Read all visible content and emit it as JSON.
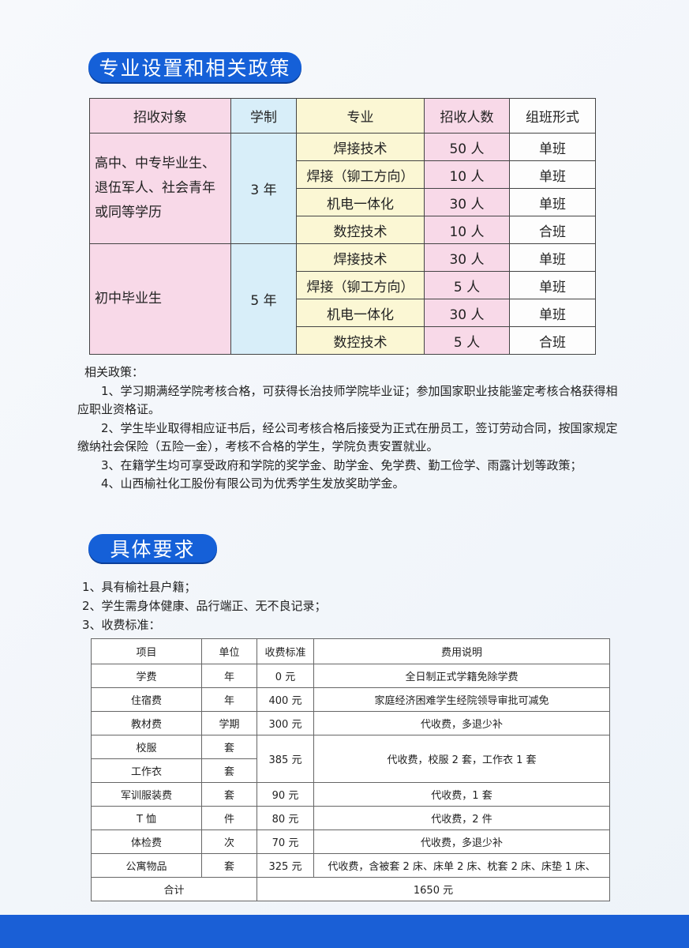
{
  "section1": {
    "title": "专业设置和相关政策"
  },
  "table1": {
    "header": [
      "招收对象",
      "学制",
      "专业",
      "招收人数",
      "组班形式"
    ],
    "groups": [
      {
        "target": "高中、中专毕业生、退伍军人、社会青年或同等学历",
        "duration": "3 年",
        "rows": [
          [
            "焊接技术",
            "50 人",
            "单班"
          ],
          [
            "焊接（铆工方向）",
            "10 人",
            "单班"
          ],
          [
            "机电一体化",
            "30 人",
            "单班"
          ],
          [
            "数控技术",
            "10 人",
            "合班"
          ]
        ]
      },
      {
        "target": "初中毕业生",
        "duration": "5 年",
        "rows": [
          [
            "焊接技术",
            "30 人",
            "单班"
          ],
          [
            "焊接（铆工方向）",
            "5 人",
            "单班"
          ],
          [
            "机电一体化",
            "30 人",
            "单班"
          ],
          [
            "数控技术",
            "5 人",
            "合班"
          ]
        ]
      }
    ]
  },
  "policy": {
    "title": "相关政策：",
    "items": [
      "1、学习期满经学院考核合格，可获得长治技师学院毕业证；参加国家职业技能鉴定考核合格获得相应职业资格证。",
      "2、学生毕业取得相应证书后，经公司考核合格后接受为正式在册员工，签订劳动合同，按国家规定缴纳社会保险（五险一金），考核不合格的学生，学院负责安置就业。",
      "3、在籍学生均可享受政府和学院的奖学金、助学金、免学费、勤工俭学、雨露计划等政策；",
      "4、山西榆社化工股份有限公司为优秀学生发放奖助学金。"
    ]
  },
  "section2": {
    "title": "具体要求"
  },
  "requirements": [
    "1、具有榆社县户籍；",
    "2、学生需身体健康、品行端正、无不良记录；",
    "3、收费标准："
  ],
  "fee_table": {
    "header": [
      "项目",
      "单位",
      "收费标准",
      "费用说明"
    ],
    "rows": [
      {
        "item": "学费",
        "unit": "年",
        "fee": "0 元",
        "note": "全日制正式学籍免除学费"
      },
      {
        "item": "住宿费",
        "unit": "年",
        "fee": "400 元",
        "note": "家庭经济困难学生经院领导审批可减免"
      },
      {
        "item": "教材费",
        "unit": "学期",
        "fee": "300 元",
        "note": "代收费，多退少补"
      },
      {
        "items": [
          {
            "item": "校服",
            "unit": "套"
          },
          {
            "item": "工作衣",
            "unit": "套"
          }
        ],
        "fee": "385 元",
        "note": "代收费，校服 2 套，工作衣 1 套"
      },
      {
        "item": "军训服装费",
        "unit": "套",
        "fee": "90 元",
        "note": "代收费，1 套"
      },
      {
        "item": "T 恤",
        "unit": "件",
        "fee": "80 元",
        "note": "代收费，2 件"
      },
      {
        "item": "体检费",
        "unit": "次",
        "fee": "70 元",
        "note": "代收费，多退少补"
      },
      {
        "item": "公寓物品",
        "unit": "套",
        "fee": "325 元",
        "note": "代收费，含被套 2 床、床单 2 床、枕套 2 床、床垫 1 床、"
      }
    ],
    "total": {
      "label": "合计",
      "value": "1650 元"
    }
  }
}
